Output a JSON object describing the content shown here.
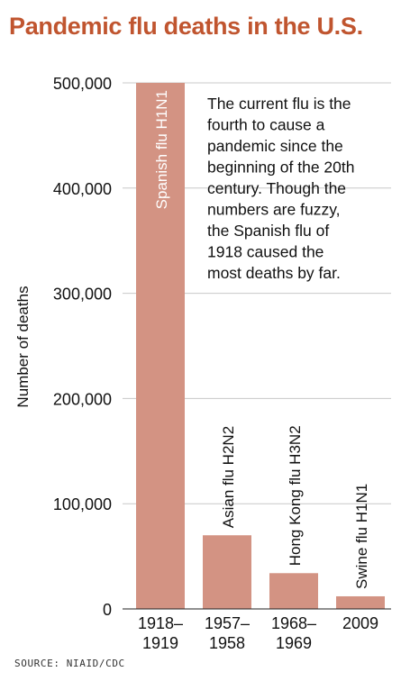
{
  "title": "Pandemic flu deaths in the U.S.",
  "source": "SOURCE: NIAID/CDC",
  "annotation": [
    "The current flu is the",
    "fourth to cause a",
    "pandemic since the",
    "beginning of the 20th",
    "century. Though the",
    "numbers are fuzzy,",
    "the Spanish flu of",
    "1918 caused the",
    "most deaths by far."
  ],
  "colors": {
    "title": "#c0552f",
    "bar": "#d39383",
    "grid": "#c8c8c8",
    "text": "#111111"
  },
  "chart_data": {
    "type": "bar",
    "title": "Pandemic flu deaths in the U.S.",
    "ylabel": "Number of deaths",
    "xlabel": "",
    "ylim": [
      0,
      500000
    ],
    "yticks": [
      0,
      100000,
      200000,
      300000,
      400000,
      500000
    ],
    "ytick_labels": [
      "0",
      "100,000",
      "200,000",
      "300,000",
      "400,000",
      "500,000"
    ],
    "grid": true,
    "categories": [
      [
        "1918–",
        "1919"
      ],
      [
        "1957–",
        "1958"
      ],
      [
        "1968–",
        "1969"
      ],
      [
        "2009"
      ]
    ],
    "bar_labels": [
      "Spanish flu H1N1",
      "Asian flu H2N2",
      "Hong Kong flu H3N2",
      "Swine flu H1N1"
    ],
    "values": [
      500000,
      70000,
      34000,
      12000
    ]
  }
}
